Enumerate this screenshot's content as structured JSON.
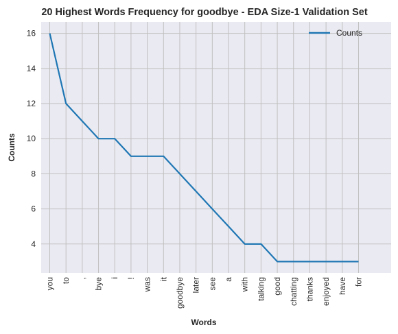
{
  "chart_data": {
    "type": "line",
    "title": "20 Highest Words Frequency for goodbye - EDA Size-1 Validation Set",
    "xlabel": "Words",
    "ylabel": "Counts",
    "categories": [
      "you",
      "to",
      ",",
      "bye",
      "i",
      "!",
      "was",
      "it",
      "goodbye",
      "later",
      "see",
      "a",
      "with",
      "talking",
      "good",
      "chatting",
      "thanks",
      "enjoyed",
      "have",
      "for"
    ],
    "series": [
      {
        "name": "Counts",
        "values": [
          16,
          12,
          11,
          10,
          10,
          9,
          9,
          9,
          8,
          7,
          6,
          5,
          4,
          4,
          3,
          3,
          3,
          3,
          3,
          3
        ],
        "color": "#1f77b4"
      }
    ],
    "yticks": [
      "4",
      "6",
      "8",
      "10",
      "12",
      "14",
      "16"
    ],
    "ylim": [
      2.35,
      16.65
    ],
    "grid": true,
    "legend_position": "top-right",
    "colors": {
      "plot_background": "#eaeaf2",
      "grid": "#c0c0c0",
      "line": "#1f77b4"
    }
  }
}
